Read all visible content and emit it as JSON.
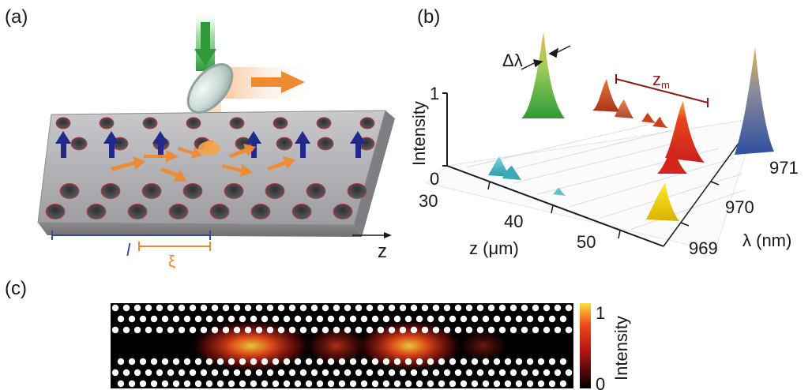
{
  "panel_a": {
    "label": "(a)",
    "length_l": "l",
    "length_xi": "ξ",
    "axis_z": "z"
  },
  "panel_b": {
    "label": "(b)",
    "delta_lambda": "Δλ",
    "zm_main": "z",
    "zm_sub": "m",
    "intensity_label": "Intensity",
    "intensity_ticks": [
      "1",
      "0"
    ],
    "z_axis_label": "z (μm)",
    "z_ticks": [
      "30",
      "40",
      "50"
    ],
    "lambda_axis_label": "λ (nm)",
    "lambda_ticks": [
      "971",
      "970",
      "969"
    ]
  },
  "panel_c": {
    "label": "(c)",
    "colorbar_label": "Intensity",
    "colorbar_max": "1",
    "colorbar_min": "0"
  },
  "colors": {
    "arrow_blue": "#1f2a8a",
    "scale_blue": "#3a4aa0",
    "scale_orange": "#e8892f",
    "laser_green": "#2e9a3a",
    "emission_orange": "#f08a30",
    "zm_red": "#8b1a1a"
  }
}
